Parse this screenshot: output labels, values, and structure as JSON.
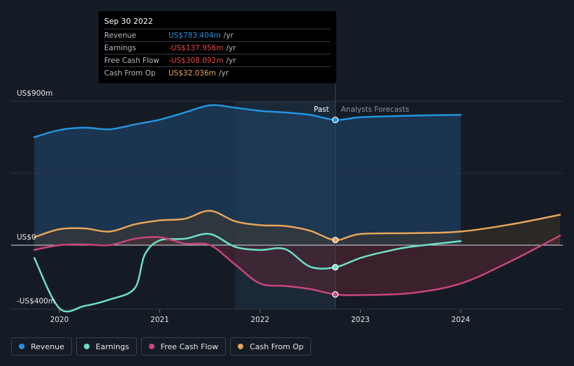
{
  "chart_data": {
    "type": "line",
    "y_axis_labels": [
      "US$900m",
      "US$0",
      "-US$400m"
    ],
    "x_ticks": [
      "2020",
      "2021",
      "2022",
      "2023",
      "2024"
    ],
    "ylim": [
      -400,
      900
    ],
    "past_label": "Past",
    "forecast_label": "Analysts Forecasts",
    "series": [
      {
        "name": "Revenue",
        "color": "#2394df",
        "points": [
          [
            2019.75,
            675
          ],
          [
            2020.0,
            720
          ],
          [
            2020.25,
            735
          ],
          [
            2020.5,
            725
          ],
          [
            2020.75,
            755
          ],
          [
            2021.0,
            785
          ],
          [
            2021.25,
            830
          ],
          [
            2021.5,
            875
          ],
          [
            2021.75,
            860
          ],
          [
            2022.0,
            840
          ],
          [
            2022.25,
            830
          ],
          [
            2022.5,
            815
          ],
          [
            2022.75,
            783.4
          ],
          [
            2023.0,
            800
          ],
          [
            2023.5,
            810
          ],
          [
            2024.0,
            815
          ]
        ]
      },
      {
        "name": "Earnings",
        "color": "#6ee0c8",
        "points": [
          [
            2019.75,
            -80
          ],
          [
            2020.0,
            -395
          ],
          [
            2020.25,
            -380
          ],
          [
            2020.5,
            -340
          ],
          [
            2020.75,
            -270
          ],
          [
            2020.85,
            -60
          ],
          [
            2021.0,
            30
          ],
          [
            2021.25,
            40
          ],
          [
            2021.5,
            70
          ],
          [
            2021.75,
            -10
          ],
          [
            2022.0,
            -30
          ],
          [
            2022.25,
            -25
          ],
          [
            2022.5,
            -135
          ],
          [
            2022.75,
            -137.956
          ],
          [
            2023.0,
            -80
          ],
          [
            2023.25,
            -40
          ],
          [
            2023.5,
            -10
          ],
          [
            2024.0,
            25
          ]
        ]
      },
      {
        "name": "Free Cash Flow",
        "color": "#c8457c",
        "points": [
          [
            2019.75,
            -30
          ],
          [
            2020.0,
            0
          ],
          [
            2020.25,
            5
          ],
          [
            2020.5,
            0
          ],
          [
            2020.75,
            40
          ],
          [
            2021.0,
            50
          ],
          [
            2021.25,
            10
          ],
          [
            2021.5,
            0
          ],
          [
            2021.75,
            -120
          ],
          [
            2022.0,
            -240
          ],
          [
            2022.25,
            -255
          ],
          [
            2022.5,
            -275
          ],
          [
            2022.75,
            -308.092
          ],
          [
            2023.0,
            -312
          ],
          [
            2023.5,
            -300
          ],
          [
            2024.0,
            -240
          ],
          [
            2024.5,
            -100
          ],
          [
            2024.99,
            60
          ]
        ]
      },
      {
        "name": "Cash From Op",
        "color": "#e7a55a",
        "points": [
          [
            2019.75,
            50
          ],
          [
            2020.0,
            100
          ],
          [
            2020.25,
            105
          ],
          [
            2020.5,
            85
          ],
          [
            2020.75,
            130
          ],
          [
            2021.0,
            155
          ],
          [
            2021.25,
            165
          ],
          [
            2021.5,
            215
          ],
          [
            2021.75,
            150
          ],
          [
            2022.0,
            125
          ],
          [
            2022.25,
            120
          ],
          [
            2022.5,
            90
          ],
          [
            2022.75,
            32.036
          ],
          [
            2023.0,
            70
          ],
          [
            2023.5,
            75
          ],
          [
            2024.0,
            85
          ],
          [
            2024.5,
            130
          ],
          [
            2024.99,
            190
          ]
        ]
      }
    ],
    "tooltip": {
      "date": "Sep 30 2022",
      "rows": [
        {
          "label": "Revenue",
          "value": "US$783.404m",
          "unit": "/yr",
          "color": "#2394df"
        },
        {
          "label": "Earnings",
          "value": "-US$137.956m",
          "unit": "/yr",
          "color": "#e64646"
        },
        {
          "label": "Free Cash Flow",
          "value": "-US$308.092m",
          "unit": "/yr",
          "color": "#e64646"
        },
        {
          "label": "Cash From Op",
          "value": "US$32.036m",
          "unit": "/yr",
          "color": "#e7a55a"
        }
      ]
    },
    "legend": [
      {
        "label": "Revenue",
        "color": "#2394df"
      },
      {
        "label": "Earnings",
        "color": "#6ee0c8"
      },
      {
        "label": "Free Cash Flow",
        "color": "#c8457c"
      },
      {
        "label": "Cash From Op",
        "color": "#e7a55a"
      }
    ],
    "past_end": 2022.75,
    "shaded_from": 2021.75
  }
}
